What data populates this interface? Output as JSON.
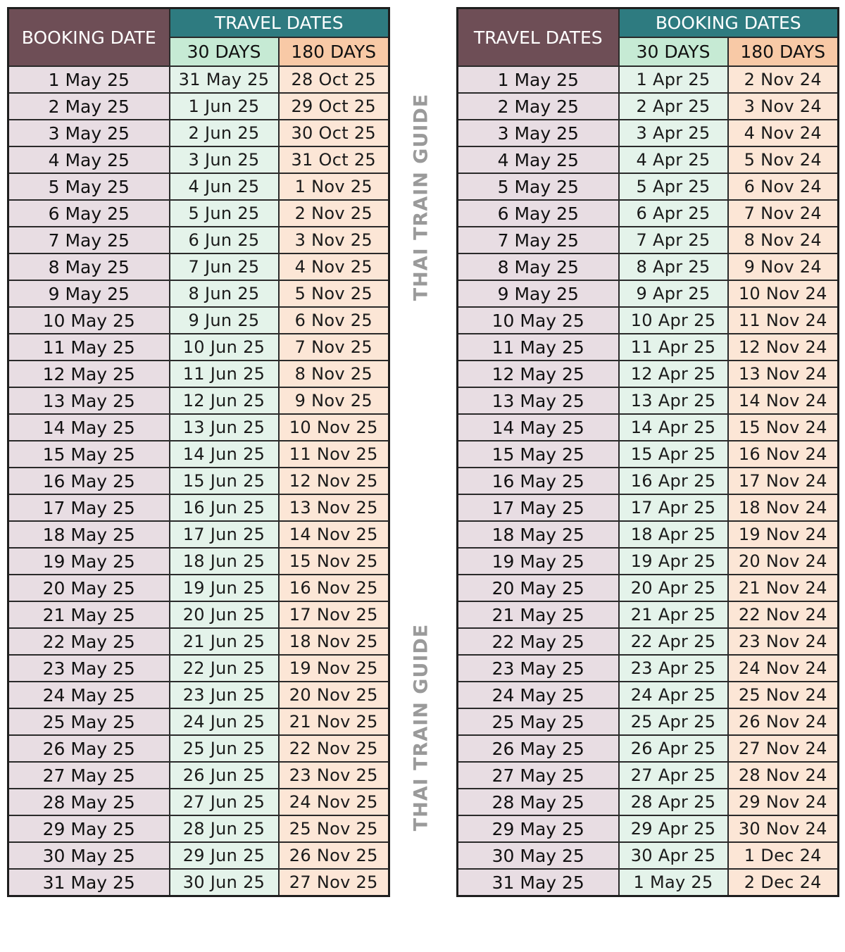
{
  "watermark": "THAI TRAIN GUIDE",
  "colors": {
    "corner_header": "#6e4e56",
    "group_header": "#2e7b80",
    "days30_header": "#c6ead4",
    "days180_header": "#f8c9a6",
    "first_column": "#e8dde3",
    "days30_cells": "#e4f3ea",
    "days180_cells": "#fce6d6"
  },
  "left_table": {
    "corner_header": "BOOKING DATE",
    "group_header": "TRAVEL DATES",
    "sub_headers": [
      "30 DAYS",
      "180 DAYS"
    ],
    "rows": [
      [
        "1 May 25",
        "31 May 25",
        "28 Oct 25"
      ],
      [
        "2 May 25",
        "1 Jun 25",
        "29 Oct 25"
      ],
      [
        "3 May 25",
        "2 Jun 25",
        "30 Oct 25"
      ],
      [
        "4 May 25",
        "3 Jun 25",
        "31 Oct 25"
      ],
      [
        "5 May 25",
        "4 Jun 25",
        "1 Nov 25"
      ],
      [
        "6 May 25",
        "5 Jun 25",
        "2 Nov 25"
      ],
      [
        "7 May 25",
        "6 Jun 25",
        "3 Nov 25"
      ],
      [
        "8 May 25",
        "7 Jun 25",
        "4 Nov 25"
      ],
      [
        "9 May 25",
        "8 Jun 25",
        "5 Nov 25"
      ],
      [
        "10 May 25",
        "9 Jun 25",
        "6 Nov 25"
      ],
      [
        "11 May 25",
        "10 Jun 25",
        "7 Nov 25"
      ],
      [
        "12 May 25",
        "11 Jun 25",
        "8 Nov 25"
      ],
      [
        "13 May 25",
        "12 Jun 25",
        "9 Nov 25"
      ],
      [
        "14 May 25",
        "13 Jun 25",
        "10 Nov 25"
      ],
      [
        "15 May 25",
        "14 Jun 25",
        "11 Nov 25"
      ],
      [
        "16 May 25",
        "15 Jun 25",
        "12 Nov 25"
      ],
      [
        "17 May 25",
        "16 Jun 25",
        "13 Nov 25"
      ],
      [
        "18 May 25",
        "17 Jun 25",
        "14 Nov 25"
      ],
      [
        "19 May 25",
        "18 Jun 25",
        "15 Nov 25"
      ],
      [
        "20 May 25",
        "19 Jun 25",
        "16 Nov 25"
      ],
      [
        "21 May 25",
        "20 Jun 25",
        "17 Nov 25"
      ],
      [
        "22 May 25",
        "21 Jun 25",
        "18 Nov 25"
      ],
      [
        "23 May 25",
        "22 Jun 25",
        "19 Nov 25"
      ],
      [
        "24 May 25",
        "23 Jun 25",
        "20 Nov 25"
      ],
      [
        "25 May 25",
        "24 Jun 25",
        "21 Nov 25"
      ],
      [
        "26 May 25",
        "25 Jun 25",
        "22 Nov 25"
      ],
      [
        "27 May 25",
        "26 Jun 25",
        "23 Nov 25"
      ],
      [
        "28 May 25",
        "27 Jun 25",
        "24 Nov 25"
      ],
      [
        "29 May 25",
        "28 Jun 25",
        "25 Nov 25"
      ],
      [
        "30 May 25",
        "29 Jun 25",
        "26 Nov 25"
      ],
      [
        "31 May 25",
        "30 Jun 25",
        "27 Nov 25"
      ]
    ]
  },
  "right_table": {
    "corner_header": "TRAVEL DATES",
    "group_header": "BOOKING DATES",
    "sub_headers": [
      "30 DAYS",
      "180 DAYS"
    ],
    "rows": [
      [
        "1 May 25",
        "1 Apr 25",
        "2 Nov 24"
      ],
      [
        "2 May 25",
        "2 Apr 25",
        "3 Nov 24"
      ],
      [
        "3 May 25",
        "3 Apr 25",
        "4 Nov 24"
      ],
      [
        "4 May 25",
        "4 Apr 25",
        "5 Nov 24"
      ],
      [
        "5 May 25",
        "5 Apr 25",
        "6 Nov 24"
      ],
      [
        "6 May 25",
        "6 Apr 25",
        "7 Nov 24"
      ],
      [
        "7 May 25",
        "7 Apr 25",
        "8 Nov 24"
      ],
      [
        "8 May 25",
        "8 Apr 25",
        "9 Nov 24"
      ],
      [
        "9 May 25",
        "9 Apr 25",
        "10 Nov 24"
      ],
      [
        "10 May 25",
        "10 Apr 25",
        "11 Nov 24"
      ],
      [
        "11 May 25",
        "11 Apr 25",
        "12 Nov 24"
      ],
      [
        "12 May 25",
        "12 Apr 25",
        "13 Nov 24"
      ],
      [
        "13 May 25",
        "13 Apr 25",
        "14 Nov 24"
      ],
      [
        "14 May 25",
        "14 Apr 25",
        "15 Nov 24"
      ],
      [
        "15 May 25",
        "15 Apr 25",
        "16 Nov 24"
      ],
      [
        "16 May 25",
        "16 Apr 25",
        "17 Nov 24"
      ],
      [
        "17 May 25",
        "17 Apr 25",
        "18 Nov 24"
      ],
      [
        "18 May 25",
        "18 Apr 25",
        "19 Nov 24"
      ],
      [
        "19 May 25",
        "19 Apr 25",
        "20 Nov 24"
      ],
      [
        "20 May 25",
        "20 Apr 25",
        "21 Nov 24"
      ],
      [
        "21 May 25",
        "21 Apr 25",
        "22 Nov 24"
      ],
      [
        "22 May 25",
        "22 Apr 25",
        "23 Nov 24"
      ],
      [
        "23 May 25",
        "23 Apr 25",
        "24 Nov 24"
      ],
      [
        "24 May 25",
        "24 Apr 25",
        "25 Nov 24"
      ],
      [
        "25 May 25",
        "25 Apr 25",
        "26 Nov 24"
      ],
      [
        "26 May 25",
        "26 Apr 25",
        "27 Nov 24"
      ],
      [
        "27 May 25",
        "27 Apr 25",
        "28 Nov 24"
      ],
      [
        "28 May 25",
        "28 Apr 25",
        "29 Nov 24"
      ],
      [
        "29 May 25",
        "29 Apr 25",
        "30 Nov 24"
      ],
      [
        "30 May 25",
        "30 Apr 25",
        "1 Dec 24"
      ],
      [
        "31 May 25",
        "1 May 25",
        "2 Dec 24"
      ]
    ]
  }
}
